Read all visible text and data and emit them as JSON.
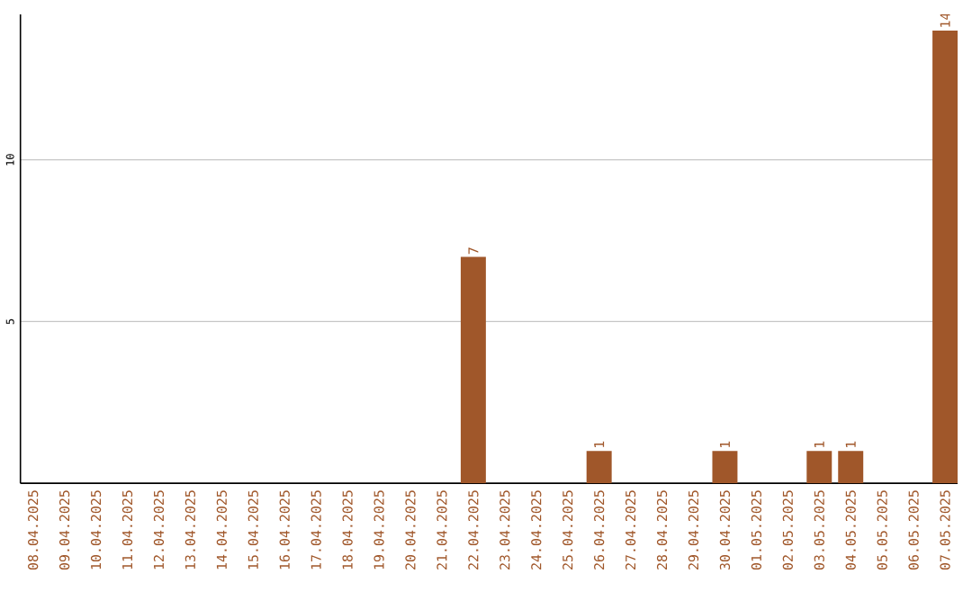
{
  "chart_data": {
    "type": "bar",
    "categories": [
      "08.04.2025",
      "09.04.2025",
      "10.04.2025",
      "11.04.2025",
      "12.04.2025",
      "13.04.2025",
      "14.04.2025",
      "15.04.2025",
      "16.04.2025",
      "17.04.2025",
      "18.04.2025",
      "19.04.2025",
      "20.04.2025",
      "21.04.2025",
      "22.04.2025",
      "23.04.2025",
      "24.04.2025",
      "25.04.2025",
      "26.04.2025",
      "27.04.2025",
      "28.04.2025",
      "29.04.2025",
      "30.04.2025",
      "01.05.2025",
      "02.05.2025",
      "03.05.2025",
      "04.05.2025",
      "05.05.2025",
      "06.05.2025",
      "07.05.2025"
    ],
    "values": [
      0,
      0,
      0,
      0,
      0,
      0,
      0,
      0,
      0,
      0,
      0,
      0,
      0,
      0,
      7,
      0,
      0,
      0,
      1,
      0,
      0,
      0,
      1,
      0,
      0,
      1,
      1,
      0,
      0,
      14
    ],
    "value_labels": [
      null,
      null,
      null,
      null,
      null,
      null,
      null,
      null,
      null,
      null,
      null,
      null,
      null,
      null,
      "7",
      null,
      null,
      null,
      "1",
      null,
      null,
      null,
      "1",
      null,
      null,
      "1",
      "1",
      null,
      null,
      "14"
    ],
    "color": "#a0572a",
    "ylim": [
      0,
      14.5
    ],
    "yticks": [
      5,
      10
    ],
    "grid": "y"
  }
}
